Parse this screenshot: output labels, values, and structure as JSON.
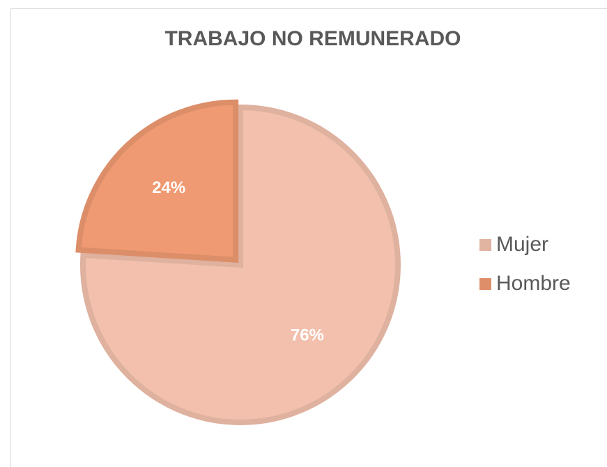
{
  "chart_data": {
    "type": "pie",
    "title": "TRABAJO NO REMUNERADO",
    "categories": [
      "Mujer",
      "Hombre"
    ],
    "values": [
      76,
      24
    ],
    "value_labels": [
      "76%",
      "24%"
    ],
    "colors": [
      "#f2c0ad",
      "#ef9a72"
    ],
    "legend": "right"
  }
}
